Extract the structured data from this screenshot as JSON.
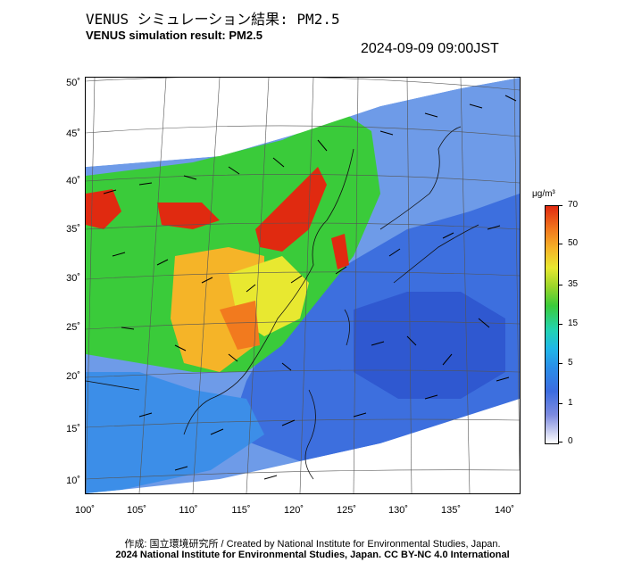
{
  "header": {
    "title_jp": "VENUS シミュレーション結果: PM2.5",
    "title_en": "VENUS simulation result: PM2.5",
    "timestamp": "2024-09-09 09:00JST"
  },
  "map": {
    "type": "map",
    "variable": "PM2.5",
    "lat_labels": [
      "50˚",
      "45˚",
      "40˚",
      "35˚",
      "30˚",
      "25˚",
      "20˚",
      "15˚",
      "10˚"
    ],
    "lon_labels": [
      "100˚",
      "105˚",
      "110˚",
      "115˚",
      "120˚",
      "125˚",
      "130˚",
      "135˚",
      "140˚"
    ],
    "lat_range": [
      10,
      50
    ],
    "lon_range": [
      100,
      140
    ],
    "wind_vectors": "shown",
    "coastlines": "shown",
    "grid": "shown"
  },
  "colorbar": {
    "unit": "μg/m³",
    "ticks": [
      "70",
      "50",
      "35",
      "15",
      "5",
      "1",
      "0"
    ],
    "colors": [
      "#e02a10",
      "#f27a1e",
      "#e8e830",
      "#3acb3a",
      "#1fb7e8",
      "#3c6ce0",
      "#ffffff"
    ]
  },
  "footer": {
    "credit": "作成: 国立環境研究所 / Created by National Institute for Environmental Studies, Japan.",
    "license": "2024 National Institute for Environmental Studies, Japan. CC BY-NC 4.0 International"
  }
}
